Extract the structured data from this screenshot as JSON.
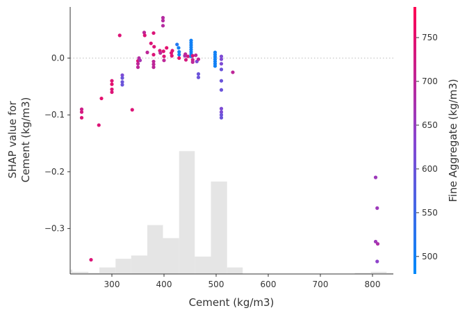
{
  "chart_data": {
    "type": "scatter",
    "title": "",
    "xlabel": "Cement (kg/m3)",
    "ylabel_lines": [
      "SHAP value for",
      "Cement (kg/m3)"
    ],
    "xlim": [
      220,
      840
    ],
    "ylim": [
      -0.38,
      0.09
    ],
    "x_ticks": [
      300,
      400,
      500,
      600,
      700,
      800
    ],
    "y_ticks": [
      0.0,
      -0.1,
      -0.2,
      -0.3
    ],
    "y_tick_labels": [
      "0.0",
      "−0.1",
      "−0.2",
      "−0.3"
    ],
    "baseline_y": 0.0,
    "colorbar": {
      "label": "Fine Aggregate (kg/m3)",
      "range": [
        480,
        785
      ],
      "ticks": [
        500,
        550,
        600,
        650,
        700,
        750
      ],
      "low_color": "#008afb",
      "mid_color": "#8845d1",
      "high_color": "#ff0051"
    },
    "histogram": {
      "bins": [
        {
          "x0": 203,
          "x1": 224,
          "count": 4
        },
        {
          "x0": 224,
          "x1": 255,
          "count": 2
        },
        {
          "x0": 255,
          "x1": 276,
          "count": 1
        },
        {
          "x0": 276,
          "x1": 307,
          "count": 6
        },
        {
          "x0": 307,
          "x1": 337,
          "count": 14
        },
        {
          "x0": 337,
          "x1": 368,
          "count": 17
        },
        {
          "x0": 368,
          "x1": 398,
          "count": 45
        },
        {
          "x0": 398,
          "x1": 429,
          "count": 33
        },
        {
          "x0": 429,
          "x1": 459,
          "count": 113
        },
        {
          "x0": 459,
          "x1": 490,
          "count": 16
        },
        {
          "x0": 490,
          "x1": 521,
          "count": 85
        },
        {
          "x0": 521,
          "x1": 551,
          "count": 6
        },
        {
          "x0": 551,
          "x1": 582,
          "count": 0
        },
        {
          "x0": 582,
          "x1": 613,
          "count": 0
        },
        {
          "x0": 613,
          "x1": 643,
          "count": 0
        },
        {
          "x0": 643,
          "x1": 674,
          "count": 0
        },
        {
          "x0": 674,
          "x1": 705,
          "count": 0
        },
        {
          "x0": 705,
          "x1": 735,
          "count": 0
        },
        {
          "x0": 735,
          "x1": 766,
          "count": 0
        },
        {
          "x0": 766,
          "x1": 797,
          "count": 1
        },
        {
          "x0": 797,
          "x1": 827,
          "count": 2
        },
        {
          "x0": 827,
          "x1": 858,
          "count": 1
        }
      ],
      "max_count": 113
    },
    "points": [
      {
        "x": 242,
        "y": -0.09,
        "c": 720
      },
      {
        "x": 242,
        "y": -0.095,
        "c": 730
      },
      {
        "x": 242,
        "y": -0.105,
        "c": 740
      },
      {
        "x": 260,
        "y": -0.355,
        "c": 740
      },
      {
        "x": 275,
        "y": -0.118,
        "c": 740
      },
      {
        "x": 280,
        "y": -0.071,
        "c": 750
      },
      {
        "x": 300,
        "y": -0.04,
        "c": 740
      },
      {
        "x": 300,
        "y": -0.046,
        "c": 750
      },
      {
        "x": 300,
        "y": -0.055,
        "c": 740
      },
      {
        "x": 300,
        "y": -0.06,
        "c": 740
      },
      {
        "x": 315,
        "y": 0.04,
        "c": 740
      },
      {
        "x": 320,
        "y": -0.03,
        "c": 620
      },
      {
        "x": 320,
        "y": -0.035,
        "c": 600
      },
      {
        "x": 320,
        "y": -0.042,
        "c": 600
      },
      {
        "x": 320,
        "y": -0.047,
        "c": 600
      },
      {
        "x": 339,
        "y": -0.091,
        "c": 740
      },
      {
        "x": 350,
        "y": -0.005,
        "c": 740
      },
      {
        "x": 350,
        "y": -0.01,
        "c": 700
      },
      {
        "x": 350,
        "y": -0.016,
        "c": 700
      },
      {
        "x": 352,
        "y": 0.0,
        "c": 690
      },
      {
        "x": 354,
        "y": -0.004,
        "c": 670
      },
      {
        "x": 362,
        "y": 0.045,
        "c": 700
      },
      {
        "x": 363,
        "y": 0.04,
        "c": 740
      },
      {
        "x": 368,
        "y": 0.01,
        "c": 700
      },
      {
        "x": 375,
        "y": 0.026,
        "c": 740
      },
      {
        "x": 380,
        "y": 0.044,
        "c": 740
      },
      {
        "x": 381,
        "y": 0.02,
        "c": 740
      },
      {
        "x": 380,
        "y": 0.006,
        "c": 740
      },
      {
        "x": 380,
        "y": -0.006,
        "c": 700
      },
      {
        "x": 380,
        "y": -0.011,
        "c": 700
      },
      {
        "x": 380,
        "y": -0.016,
        "c": 700
      },
      {
        "x": 392,
        "y": 0.013,
        "c": 740
      },
      {
        "x": 393,
        "y": 0.009,
        "c": 700
      },
      {
        "x": 398,
        "y": 0.071,
        "c": 690
      },
      {
        "x": 398,
        "y": 0.066,
        "c": 690
      },
      {
        "x": 398,
        "y": 0.057,
        "c": 690
      },
      {
        "x": 399,
        "y": 0.012,
        "c": 740
      },
      {
        "x": 400,
        "y": 0.003,
        "c": 740
      },
      {
        "x": 400,
        "y": -0.004,
        "c": 700
      },
      {
        "x": 405,
        "y": 0.018,
        "c": 750
      },
      {
        "x": 414,
        "y": 0.009,
        "c": 740
      },
      {
        "x": 415,
        "y": 0.004,
        "c": 740
      },
      {
        "x": 416,
        "y": 0.013,
        "c": 740
      },
      {
        "x": 425,
        "y": 0.024,
        "c": 520
      },
      {
        "x": 428,
        "y": 0.018,
        "c": 500
      },
      {
        "x": 429,
        "y": 0.011,
        "c": 500
      },
      {
        "x": 429,
        "y": 0.006,
        "c": 500
      },
      {
        "x": 429,
        "y": 0.0,
        "c": 750
      },
      {
        "x": 440,
        "y": 0.004,
        "c": 670
      },
      {
        "x": 441,
        "y": 0.007,
        "c": 700
      },
      {
        "x": 442,
        "y": -0.003,
        "c": 730
      },
      {
        "x": 446,
        "y": 0.003,
        "c": 730
      },
      {
        "x": 452,
        "y": 0.031,
        "c": 500
      },
      {
        "x": 452,
        "y": 0.027,
        "c": 500
      },
      {
        "x": 452,
        "y": 0.023,
        "c": 500
      },
      {
        "x": 452,
        "y": 0.019,
        "c": 500
      },
      {
        "x": 452,
        "y": 0.015,
        "c": 500
      },
      {
        "x": 452,
        "y": 0.011,
        "c": 500
      },
      {
        "x": 452,
        "y": 0.007,
        "c": 500
      },
      {
        "x": 452,
        "y": 0.003,
        "c": 500
      },
      {
        "x": 455,
        "y": 0.004,
        "c": 740
      },
      {
        "x": 455,
        "y": -0.003,
        "c": 720
      },
      {
        "x": 455,
        "y": -0.007,
        "c": 700
      },
      {
        "x": 461,
        "y": 0.005,
        "c": 700
      },
      {
        "x": 463,
        "y": -0.006,
        "c": 620
      },
      {
        "x": 466,
        "y": -0.028,
        "c": 600
      },
      {
        "x": 466,
        "y": -0.034,
        "c": 600
      },
      {
        "x": 466,
        "y": -0.002,
        "c": 700
      },
      {
        "x": 498,
        "y": 0.01,
        "c": 500
      },
      {
        "x": 498,
        "y": 0.006,
        "c": 500
      },
      {
        "x": 498,
        "y": 0.002,
        "c": 500
      },
      {
        "x": 498,
        "y": -0.002,
        "c": 500
      },
      {
        "x": 498,
        "y": -0.006,
        "c": 500
      },
      {
        "x": 498,
        "y": -0.01,
        "c": 500
      },
      {
        "x": 498,
        "y": -0.014,
        "c": 500
      },
      {
        "x": 510,
        "y": 0.003,
        "c": 620
      },
      {
        "x": 510,
        "y": -0.002,
        "c": 620
      },
      {
        "x": 510,
        "y": -0.01,
        "c": 620
      },
      {
        "x": 510,
        "y": -0.02,
        "c": 600
      },
      {
        "x": 510,
        "y": -0.04,
        "c": 600
      },
      {
        "x": 510,
        "y": -0.056,
        "c": 600
      },
      {
        "x": 510,
        "y": -0.089,
        "c": 620
      },
      {
        "x": 510,
        "y": -0.095,
        "c": 620
      },
      {
        "x": 510,
        "y": -0.1,
        "c": 600
      },
      {
        "x": 510,
        "y": -0.105,
        "c": 600
      },
      {
        "x": 532,
        "y": -0.025,
        "c": 700
      },
      {
        "x": 806,
        "y": -0.21,
        "c": 660
      },
      {
        "x": 809,
        "y": -0.264,
        "c": 660
      },
      {
        "x": 806,
        "y": -0.323,
        "c": 660
      },
      {
        "x": 810,
        "y": -0.327,
        "c": 680
      },
      {
        "x": 809,
        "y": -0.358,
        "c": 640
      }
    ]
  }
}
